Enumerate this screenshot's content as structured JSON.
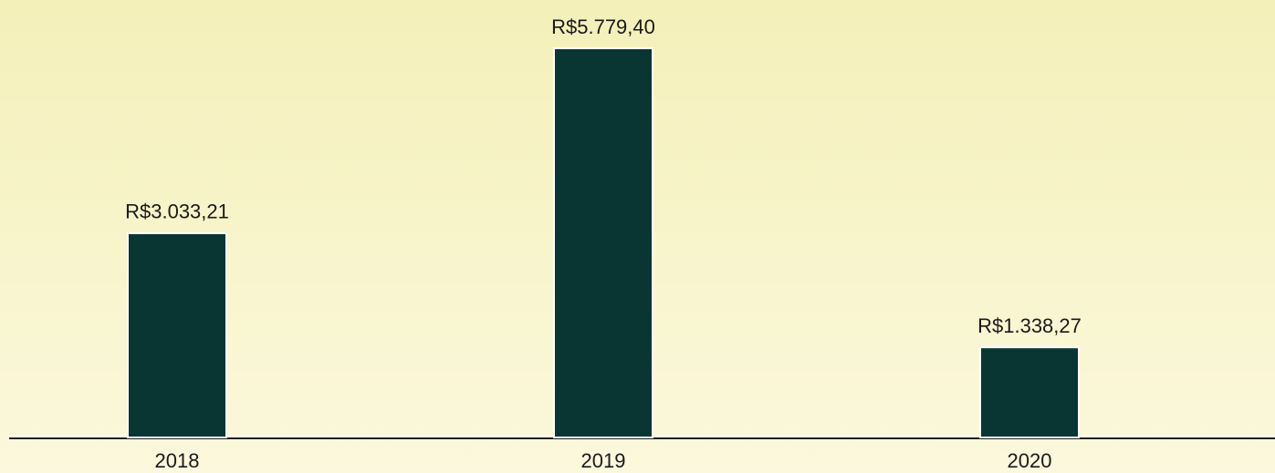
{
  "chart_data": {
    "type": "bar",
    "categories": [
      "2018",
      "2019",
      "2020"
    ],
    "values": [
      3033.21,
      5779.4,
      1338.27
    ],
    "value_labels": [
      "R$3.033,21",
      "R$5.779,40",
      "R$1.338,27"
    ],
    "color": "#093532"
  }
}
